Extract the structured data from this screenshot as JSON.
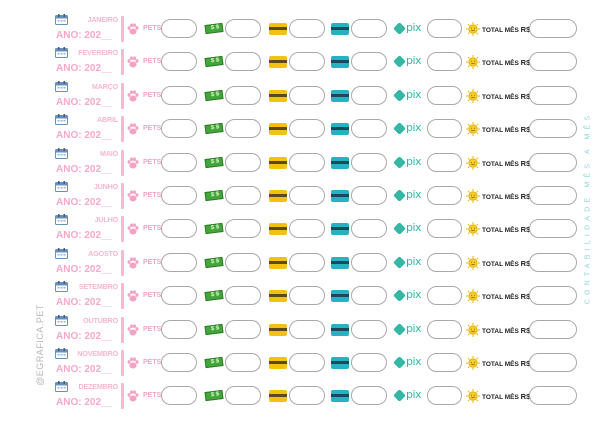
{
  "labels": {
    "year": "ANO: 202__",
    "pets": "PETS",
    "cash": "$ $",
    "pix": "pix",
    "total": "TOTAL MÊS",
    "currency": "R$"
  },
  "months": [
    "JANEIRO",
    "FEVEREIRO",
    "MARÇO",
    "ABRIL",
    "MAIO",
    "JUNHO",
    "JULHO",
    "AGOSTO",
    "SETEMBRO",
    "OUTUBRO",
    "NOVEMBRO",
    "DEZEMBRO"
  ],
  "side_text_right": "CONTABILIDADE MÊS A MÊS",
  "side_text_left": "@EGRAFICA.PET",
  "icons": {
    "calendar": "calendar-icon",
    "pets": "paw-icon",
    "cash": "cash-icon",
    "card_yellow": "credit-card-icon",
    "card_blue": "debit-card-icon",
    "pix": "pix-icon",
    "total": "sun-coin-icon"
  },
  "colors": {
    "pink": "#f6b7cf",
    "pix": "#34b7a5",
    "cash": "#43a63a",
    "card_yellow": "#f2c20f",
    "card_blue": "#27b2c4",
    "side_text": "#8fd3e0"
  }
}
